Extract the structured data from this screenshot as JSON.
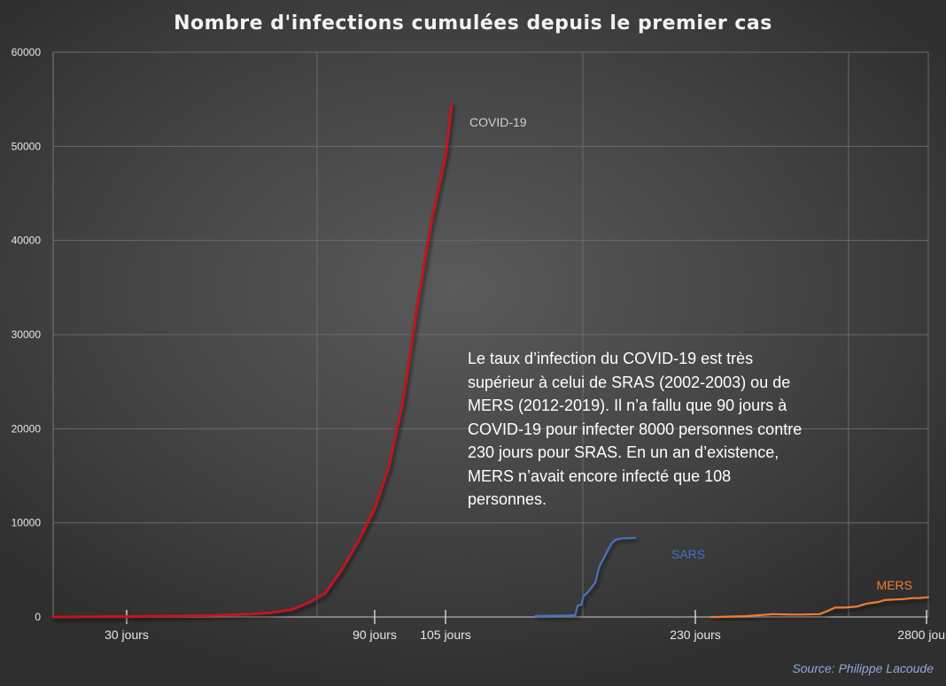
{
  "chart_data": {
    "type": "line",
    "title": "Nombre d'infections cumulées depuis le premier cas",
    "ylim": [
      0,
      60000
    ],
    "yticks": [
      0,
      10000,
      20000,
      30000,
      40000,
      50000,
      60000
    ],
    "x_labels": [
      "30 jours",
      "90 jours",
      "105 jours",
      "230 jours",
      "2800 jours"
    ],
    "grid": true,
    "series": [
      {
        "name": "COVID-19",
        "color": "#c0171b",
        "points": [
          [
            0,
            0
          ],
          [
            30,
            40
          ],
          [
            50,
            150
          ],
          [
            60,
            300
          ],
          [
            65,
            450
          ],
          [
            70,
            800
          ],
          [
            74,
            1500
          ],
          [
            78,
            2500
          ],
          [
            82,
            5000
          ],
          [
            86,
            8000
          ],
          [
            90,
            11500
          ],
          [
            93,
            16000
          ],
          [
            96,
            23000
          ],
          [
            99,
            33000
          ],
          [
            102,
            42000
          ],
          [
            105,
            49000
          ],
          [
            107,
            52500
          ],
          [
            108,
            54500
          ]
        ]
      },
      {
        "name": "SARS",
        "color": "#4472c4",
        "points": [
          [
            150,
            100
          ],
          [
            165,
            150
          ],
          [
            170,
            200
          ],
          [
            171,
            1200
          ],
          [
            173,
            1300
          ],
          [
            174,
            2200
          ],
          [
            176,
            2600
          ],
          [
            178,
            3100
          ],
          [
            180,
            3700
          ],
          [
            181,
            4600
          ],
          [
            182,
            5400
          ],
          [
            183,
            5800
          ],
          [
            185,
            6600
          ],
          [
            187,
            7400
          ],
          [
            188,
            7800
          ],
          [
            190,
            8200
          ],
          [
            193,
            8350
          ],
          [
            200,
            8400
          ]
        ]
      },
      {
        "name": "MERS",
        "color": "#ed7d31",
        "points": [
          [
            235,
            0
          ],
          [
            237,
            0
          ],
          [
            246,
            80
          ],
          [
            255,
            300
          ],
          [
            262,
            250
          ],
          [
            270,
            300
          ],
          [
            273,
            700
          ],
          [
            275,
            1000
          ],
          [
            278,
            1000
          ],
          [
            282,
            1100
          ],
          [
            285,
            1400
          ],
          [
            287,
            1500
          ],
          [
            289,
            1600
          ],
          [
            291,
            1800
          ],
          [
            294,
            1850
          ],
          [
            297,
            1900
          ],
          [
            300,
            2000
          ],
          [
            302,
            2000
          ],
          [
            305,
            2100
          ]
        ]
      }
    ]
  },
  "annotation": "Le taux d’infection du COVID-19 est très supérieur à celui de SRAS (2002-2003) ou de MERS (2012-2019). Il n’a fallu que 90 jours à COVID-19 pour infecter 8000 personnes contre 230 jours pour SRAS. En un an d’existence, MERS n’avait encore infecté que 108 personnes.",
  "source": "Source: Philippe Lacoude"
}
